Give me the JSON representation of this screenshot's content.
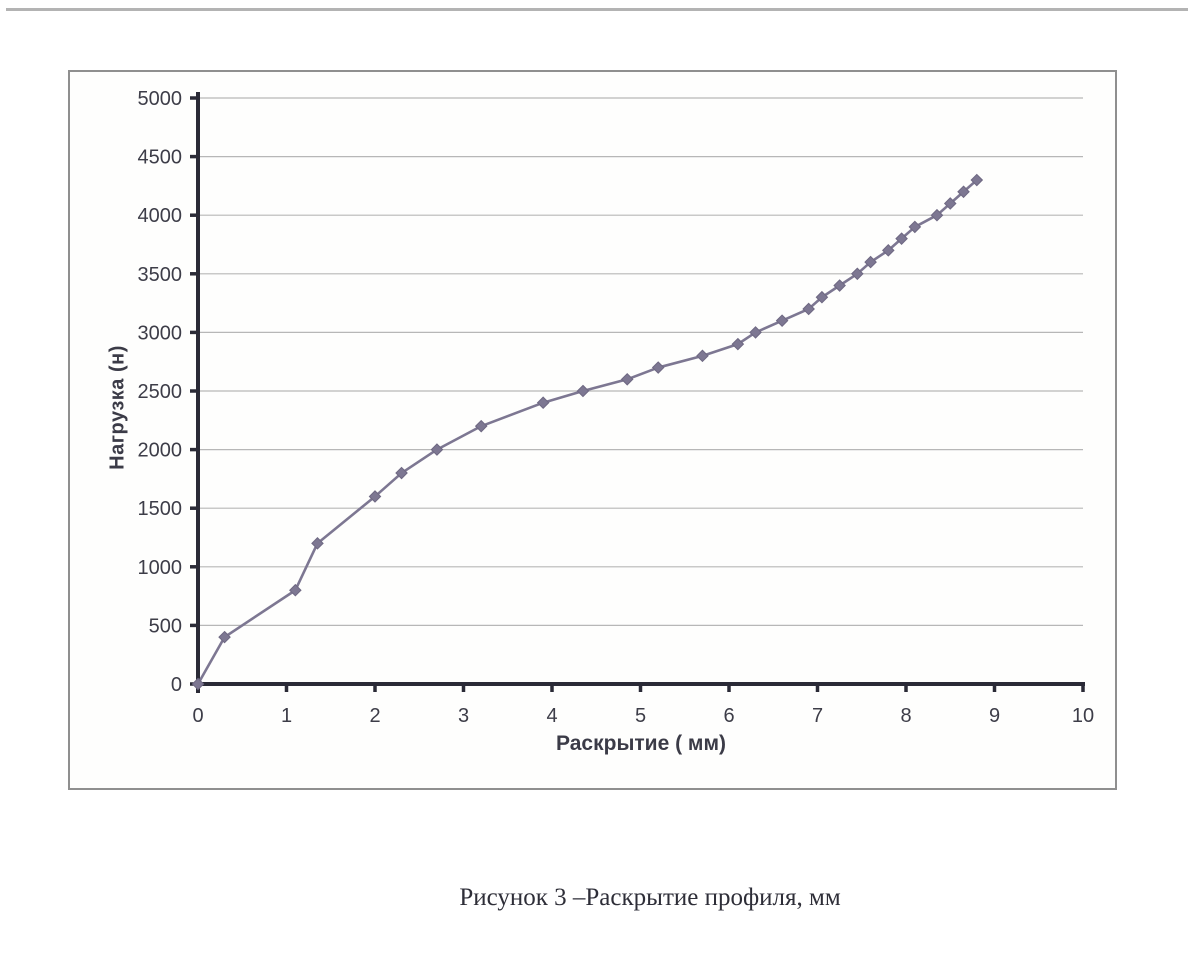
{
  "page": {
    "caption": "Рисунок 3 –Раскрытие профиля, мм"
  },
  "chart_data": {
    "type": "line",
    "title": "",
    "xlabel": "Раскрытие ( мм)",
    "ylabel": "Нагрузка (н)",
    "xlim": [
      0,
      10
    ],
    "ylim": [
      0,
      5000
    ],
    "x_ticks": [
      0,
      1,
      2,
      3,
      4,
      5,
      6,
      7,
      8,
      9,
      10
    ],
    "y_ticks": [
      0,
      500,
      1000,
      1500,
      2000,
      2500,
      3000,
      3500,
      4000,
      4500,
      5000
    ],
    "grid": "horizontal-only",
    "legend": "none",
    "marker": "diamond",
    "series": [
      {
        "name": "Раскрытие профиля",
        "points": [
          [
            0,
            0
          ],
          [
            0.3,
            400
          ],
          [
            1.1,
            800
          ],
          [
            1.35,
            1200
          ],
          [
            2.0,
            1600
          ],
          [
            2.3,
            1800
          ],
          [
            2.7,
            2000
          ],
          [
            3.2,
            2200
          ],
          [
            3.9,
            2400
          ],
          [
            4.35,
            2500
          ],
          [
            4.85,
            2600
          ],
          [
            5.2,
            2700
          ],
          [
            5.7,
            2800
          ],
          [
            6.1,
            2900
          ],
          [
            6.3,
            3000
          ],
          [
            6.6,
            3100
          ],
          [
            6.9,
            3200
          ],
          [
            7.05,
            3300
          ],
          [
            7.25,
            3400
          ],
          [
            7.45,
            3500
          ],
          [
            7.6,
            3600
          ],
          [
            7.8,
            3700
          ],
          [
            7.95,
            3800
          ],
          [
            8.1,
            3900
          ],
          [
            8.35,
            4000
          ],
          [
            8.5,
            4100
          ],
          [
            8.65,
            4200
          ],
          [
            8.8,
            4300
          ]
        ]
      }
    ],
    "colors": {
      "series": "#7d7792",
      "series_edge": "#6e6882",
      "axis": "#2a2a36",
      "grid": "#b7b7b7",
      "tick_label": "#3d3d48",
      "frame_border": "#8f8f8f"
    }
  }
}
